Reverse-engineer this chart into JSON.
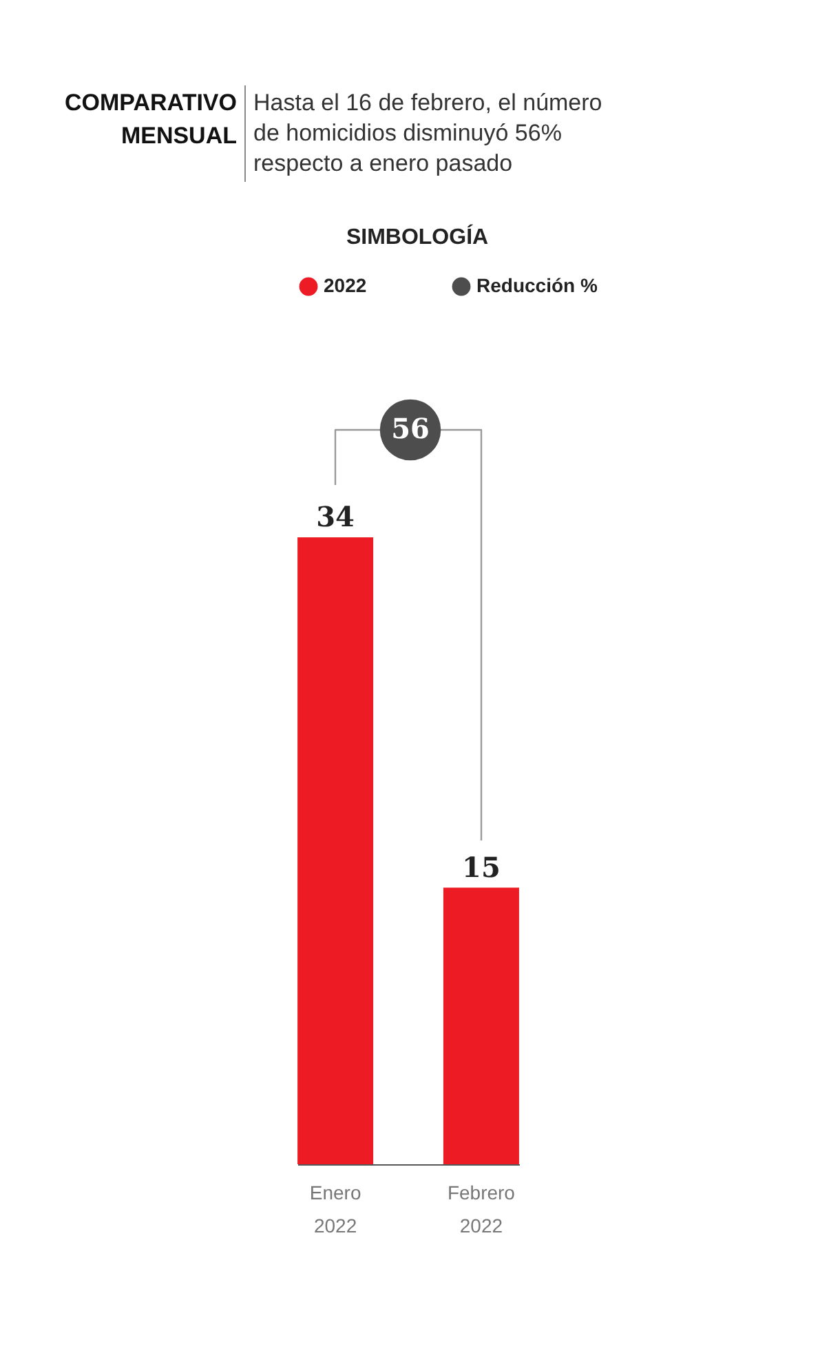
{
  "chart_data": {
    "type": "bar",
    "title": "COMPARATIVO MENSUAL",
    "subtitle": "Hasta el 16 de febrero, el número de homicidios disminuyó 56% respecto a enero pasado",
    "legend_title": "SIMBOLOGÍA",
    "legend": "top",
    "categories": [
      "Enero\n2022",
      "Febrero\n2022"
    ],
    "series": [
      {
        "name": "2022",
        "color": "#ed1c24",
        "values": [
          34,
          15
        ]
      },
      {
        "name": "Reducción %",
        "color": "#4d4d4d",
        "values": [
          null,
          null
        ]
      }
    ],
    "annotations": [
      "56"
    ],
    "data_labels": true,
    "grid": false
  }
}
